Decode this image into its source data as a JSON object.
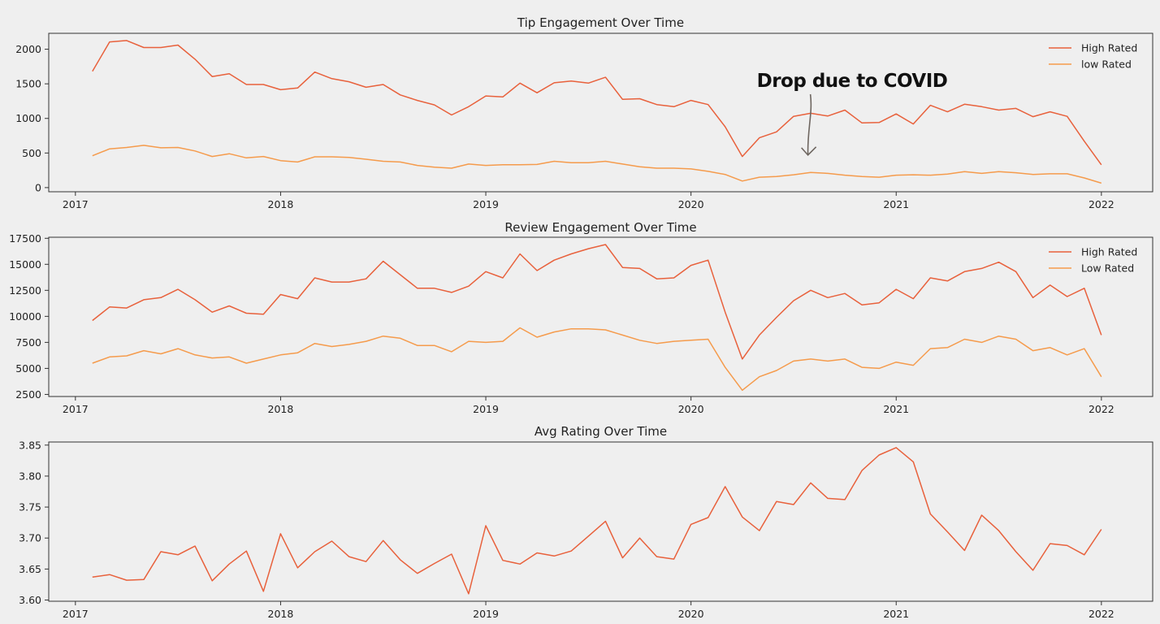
{
  "chart_data": [
    {
      "type": "line",
      "title": "Tip Engagement Over Time",
      "xlabel": "",
      "ylabel": "",
      "xlim": [
        2016.87,
        2022.25
      ],
      "ylim": [
        -60,
        2230
      ],
      "x_ticks": [
        "2017",
        "2018",
        "2019",
        "2020",
        "2021",
        "2022"
      ],
      "y_ticks": [
        0,
        500,
        1000,
        1500,
        2000
      ],
      "legend_position": "top-right",
      "grid": false,
      "series": [
        {
          "name": "High Rated",
          "color": "#e8613c",
          "values": [
            1680,
            2105,
            2125,
            2025,
            2025,
            2060,
            1855,
            1605,
            1645,
            1490,
            1490,
            1415,
            1440,
            1670,
            1575,
            1530,
            1450,
            1490,
            1340,
            1260,
            1195,
            1050,
            1170,
            1325,
            1310,
            1510,
            1370,
            1515,
            1540,
            1510,
            1595,
            1275,
            1285,
            1200,
            1170,
            1260,
            1200,
            880,
            450,
            720,
            805,
            1030,
            1075,
            1035,
            1120,
            935,
            940,
            1065,
            920,
            1190,
            1095,
            1205,
            1170,
            1120,
            1145,
            1025,
            1095,
            1030,
            670,
            330
          ]
        },
        {
          "name": "low Rated",
          "color": "#f59b4c",
          "values": [
            460,
            560,
            580,
            610,
            575,
            580,
            530,
            450,
            490,
            430,
            450,
            390,
            370,
            445,
            445,
            435,
            410,
            380,
            370,
            320,
            295,
            280,
            340,
            320,
            330,
            330,
            335,
            380,
            360,
            360,
            380,
            340,
            300,
            280,
            280,
            270,
            235,
            190,
            95,
            150,
            160,
            185,
            220,
            205,
            180,
            160,
            150,
            180,
            185,
            180,
            195,
            230,
            205,
            230,
            215,
            190,
            200,
            200,
            140,
            65
          ]
        }
      ],
      "annotation": {
        "text": "Drop due to COVID",
        "x": 2020.57,
        "y": 470
      }
    },
    {
      "type": "line",
      "title": "Review Engagement Over Time",
      "xlabel": "",
      "ylabel": "",
      "xlim": [
        2016.87,
        2022.25
      ],
      "ylim": [
        2300,
        17600
      ],
      "x_ticks": [
        "2017",
        "2018",
        "2019",
        "2020",
        "2021",
        "2022"
      ],
      "y_ticks": [
        2500,
        5000,
        7500,
        10000,
        12500,
        15000,
        17500
      ],
      "legend_position": "top-right",
      "grid": false,
      "series": [
        {
          "name": "High Rated",
          "color": "#e8613c",
          "values": [
            9600,
            10900,
            10800,
            11600,
            11800,
            12600,
            11600,
            10400,
            11000,
            10300,
            10200,
            12100,
            11700,
            13700,
            13300,
            13300,
            13600,
            15300,
            14000,
            12700,
            12700,
            12300,
            12900,
            14300,
            13700,
            16000,
            14400,
            15400,
            16000,
            16500,
            16900,
            14700,
            14600,
            13600,
            13700,
            14900,
            15400,
            10400,
            5900,
            8200,
            9900,
            11500,
            12500,
            11800,
            12200,
            11100,
            11300,
            12600,
            11700,
            13700,
            13400,
            14300,
            14600,
            15200,
            14300,
            11800,
            13000,
            11900,
            12700,
            8200
          ]
        },
        {
          "name": "Low Rated",
          "color": "#f59b4c",
          "values": [
            5500,
            6100,
            6200,
            6700,
            6400,
            6900,
            6300,
            6000,
            6100,
            5500,
            5900,
            6300,
            6500,
            7400,
            7100,
            7300,
            7600,
            8100,
            7900,
            7200,
            7200,
            6600,
            7600,
            7500,
            7600,
            8900,
            8000,
            8500,
            8800,
            8800,
            8700,
            8200,
            7700,
            7400,
            7600,
            7700,
            7800,
            5100,
            2900,
            4200,
            4800,
            5700,
            5900,
            5700,
            5900,
            5100,
            5000,
            5600,
            5300,
            6900,
            7000,
            7800,
            7500,
            8100,
            7800,
            6700,
            7000,
            6300,
            6900,
            4200
          ]
        }
      ]
    },
    {
      "type": "line",
      "title": "Avg Rating Over Time",
      "xlabel": "",
      "ylabel": "",
      "xlim": [
        2016.87,
        2022.25
      ],
      "ylim": [
        3.598,
        3.855
      ],
      "x_ticks": [
        "2017",
        "2018",
        "2019",
        "2020",
        "2021",
        "2022"
      ],
      "y_ticks": [
        "3.60",
        "3.65",
        "3.70",
        "3.75",
        "3.80",
        "3.85"
      ],
      "grid": false,
      "series": [
        {
          "color": "#e8613c",
          "values": [
            3.637,
            3.641,
            3.632,
            3.633,
            3.678,
            3.673,
            3.687,
            3.631,
            3.658,
            3.679,
            3.614,
            3.707,
            3.652,
            3.678,
            3.695,
            3.67,
            3.662,
            3.696,
            3.665,
            3.643,
            3.659,
            3.674,
            3.61,
            3.72,
            3.664,
            3.658,
            3.676,
            3.671,
            3.679,
            3.703,
            3.727,
            3.668,
            3.7,
            3.67,
            3.666,
            3.722,
            3.733,
            3.783,
            3.734,
            3.712,
            3.759,
            3.754,
            3.789,
            3.764,
            3.762,
            3.809,
            3.834,
            3.846,
            3.823,
            3.739,
            3.71,
            3.68,
            3.737,
            3.712,
            3.678,
            3.648,
            3.691,
            3.688,
            3.673,
            3.714
          ]
        }
      ]
    }
  ]
}
